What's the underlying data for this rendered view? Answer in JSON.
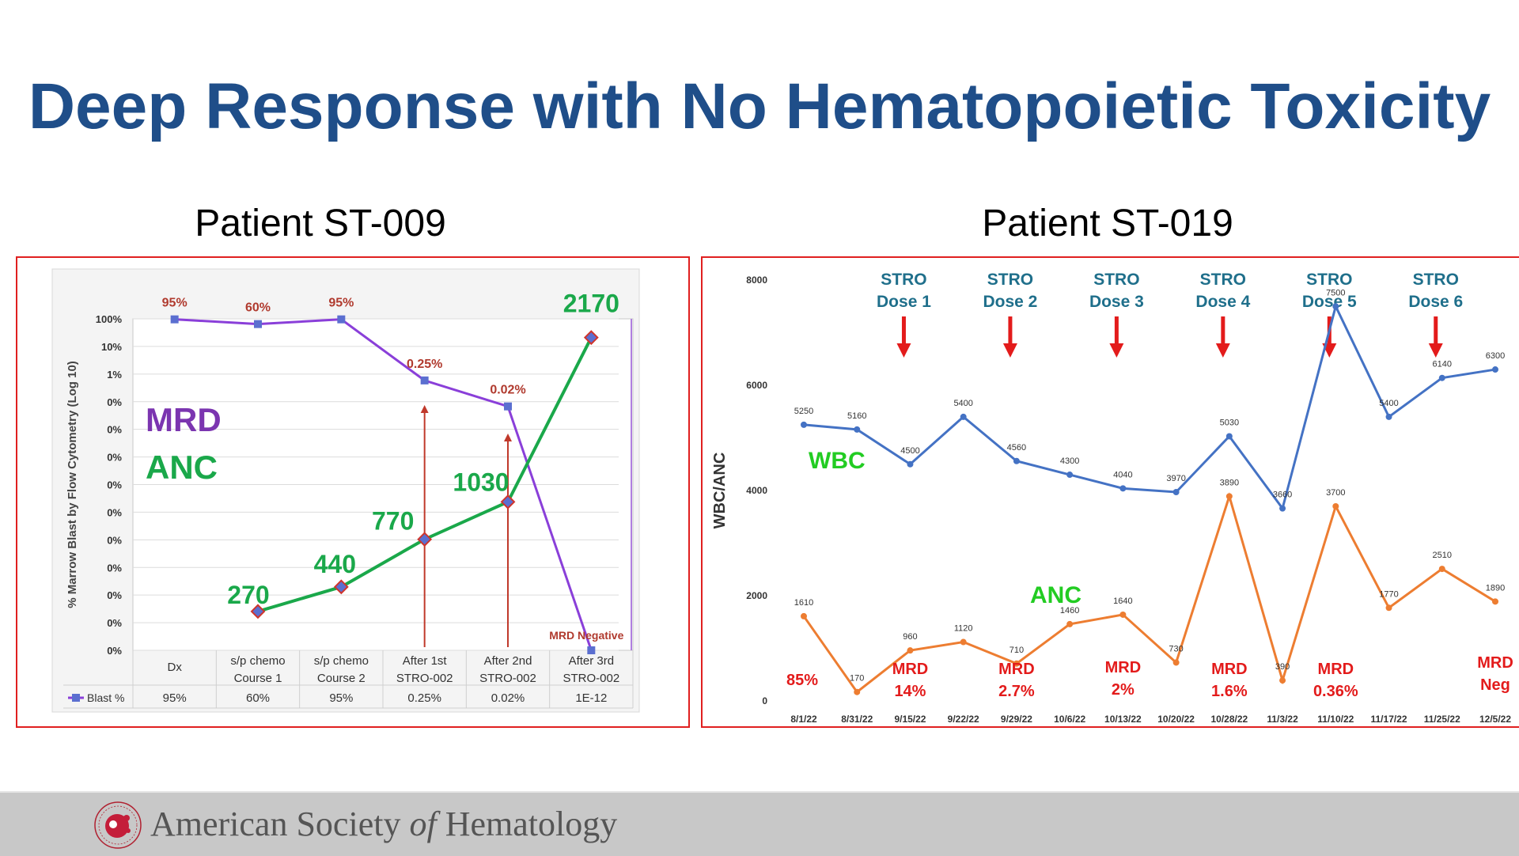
{
  "slide": {
    "title": "Deep Response with No Hematopoietic Toxicity",
    "footer": {
      "org_pre": "American Society ",
      "org_of": "of",
      "org_post": " Hematology",
      "logo": "ash-logo-icon"
    }
  },
  "left_panel": {
    "title": "Patient ST-009"
  },
  "right_panel": {
    "title": "Patient ST-019"
  },
  "chart_data": [
    {
      "type": "line",
      "panel": "Patient ST-009",
      "categories": [
        [
          "Dx"
        ],
        [
          "s/p chemo",
          "Course 1"
        ],
        [
          "s/p chemo",
          "Course 2"
        ],
        [
          "After 1st",
          "STRO-002"
        ],
        [
          "After 2nd",
          "STRO-002"
        ],
        [
          "After 3rd",
          "STRO-002"
        ]
      ],
      "ylabel": "% Marrow Blast by Flow Cytometry (Log 10)",
      "yticks": [
        "100%",
        "10%",
        "1%",
        "0%",
        "0%",
        "0%",
        "0%",
        "0%",
        "0%",
        "0%",
        "0%",
        "0%",
        "0%"
      ],
      "scale": "log",
      "series": [
        {
          "name": "Blast %",
          "color": "#8a3fd9",
          "marker": "square",
          "values": [
            95,
            60,
            95,
            0.25,
            0.02,
            1e-12
          ],
          "labels": [
            "95%",
            "60%",
            "95%",
            "0.25%",
            "0.02%",
            "MRD Negative"
          ]
        },
        {
          "name": "ANC",
          "color": "#1aa84a",
          "marker": "diamond",
          "values": [
            null,
            270,
            440,
            770,
            1030,
            2170
          ],
          "labels": [
            "",
            "270",
            "440",
            "770",
            "1030",
            "2170"
          ]
        }
      ],
      "legend_labels": {
        "mrd": "MRD",
        "anc": "ANC"
      },
      "table": {
        "row_label": "Blast %",
        "values": [
          "95%",
          "60%",
          "95%",
          "0.25%",
          "0.02%",
          "1E-12"
        ]
      },
      "arrows_at": [
        3,
        4
      ]
    },
    {
      "type": "line",
      "panel": "Patient ST-019",
      "x": [
        "8/1/22",
        "8/31/22",
        "9/15/22",
        "9/22/22",
        "9/29/22",
        "10/6/22",
        "10/13/22",
        "10/20/22",
        "10/28/22",
        "11/3/22",
        "11/10/22",
        "11/17/22",
        "11/25/22",
        "12/5/22"
      ],
      "ylabel": "WBC/ANC",
      "ylim": [
        0,
        8000
      ],
      "yticks": [
        0,
        2000,
        4000,
        6000,
        8000
      ],
      "series": [
        {
          "name": "WBC",
          "color": "#4472c4",
          "values": [
            5250,
            5160,
            4500,
            5400,
            4560,
            4300,
            4040,
            3970,
            5030,
            3660,
            7500,
            5400,
            6140,
            6300
          ]
        },
        {
          "name": "ANC",
          "color": "#ed7d31",
          "values": [
            1610,
            170,
            960,
            1120,
            710,
            1460,
            1640,
            730,
            3890,
            390,
            3700,
            1770,
            2510,
            1890
          ]
        }
      ],
      "doses": [
        {
          "line1": "STRO",
          "line2": "Dose 1",
          "at": 2
        },
        {
          "line1": "STRO",
          "line2": "Dose 2",
          "at": 4
        },
        {
          "line1": "STRO",
          "line2": "Dose 3",
          "at": 6
        },
        {
          "line1": "STRO",
          "line2": "Dose 4",
          "at": 8
        },
        {
          "line1": "STRO",
          "line2": "Dose 5",
          "at": 10
        },
        {
          "line1": "STRO",
          "line2": "Dose 6",
          "at": 12
        }
      ],
      "mrd_labels": [
        {
          "line1": "85%",
          "line2": "",
          "at": 0
        },
        {
          "line1": "MRD",
          "line2": "14%",
          "at": 2
        },
        {
          "line1": "MRD",
          "line2": "2.7%",
          "at": 4
        },
        {
          "line1": "MRD",
          "line2": "2%",
          "at": 6
        },
        {
          "line1": "MRD",
          "line2": "1.6%",
          "at": 8
        },
        {
          "line1": "MRD",
          "line2": "0.36%",
          "at": 10
        },
        {
          "line1": "MRD",
          "line2": "Neg",
          "at": 13
        }
      ]
    }
  ]
}
